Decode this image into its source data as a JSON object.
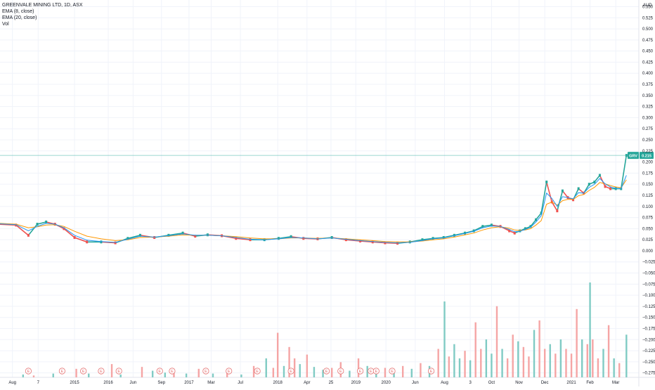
{
  "legend": {
    "title": "GREENVALE MINING LTD, 1D, ASX",
    "ema8": "EMA (8, close)",
    "ema20": "EMA (20, close)",
    "vol": "Vol"
  },
  "colors": {
    "up": "#26a69a",
    "down": "#ef5350",
    "ema8": "#2196f3",
    "ema20": "#ff9800",
    "vol_up": "#80cbc4",
    "vol_down": "#f5a5a5",
    "grid": "#f0f3fa",
    "earnings": "#e57373"
  },
  "chart_data": {
    "type": "line",
    "title": "GREENVALE MINING LTD, 1D, ASX",
    "currency": "AUD",
    "last_price": {
      "symbol": "GRV",
      "value": 0.215
    },
    "y_ticks": [
      0.55,
      0.525,
      0.5,
      0.475,
      0.45,
      0.425,
      0.4,
      0.375,
      0.35,
      0.325,
      0.3,
      0.275,
      0.25,
      0.225,
      0.2,
      0.175,
      0.15,
      0.125,
      0.1,
      0.075,
      0.05,
      0.025,
      0.0,
      -0.025,
      -0.05,
      -0.075,
      -0.1,
      -0.125,
      -0.15,
      -0.175,
      -0.2,
      -0.225,
      -0.25,
      -0.275
    ],
    "y_tick_labels": [
      "0.550",
      "0.525",
      "0.500",
      "0.475",
      "0.450",
      "0.425",
      "0.400",
      "0.375",
      "0.350",
      "0.325",
      "0.300",
      "0.275",
      "0.250",
      "0.225",
      "0.200",
      "0.175",
      "0.150",
      "0.125",
      "0.100",
      "0.075",
      "0.050",
      "0.025",
      "0.000",
      "−0.025",
      "−0.050",
      "−0.075",
      "−0.100",
      "−0.125",
      "−0.150",
      "−0.175",
      "−0.200",
      "−0.225",
      "−0.250",
      "−0.275"
    ],
    "ylim": [
      -0.285,
      0.565
    ],
    "x_tick_labels": [
      "Aug",
      "7",
      "2015",
      "2016",
      "Jun",
      "Sep",
      "2017",
      "Mar",
      "Jul",
      "2018",
      "Apr",
      "25",
      "2019",
      "2020",
      "Jun",
      "Aug",
      "3",
      "Oct",
      "Nov",
      "Dec",
      "2021",
      "Feb",
      "Mar"
    ],
    "x_tick_positions": [
      0,
      1.45,
      3.5,
      5.4,
      6.8,
      8.4,
      9.95,
      11.2,
      12.85,
      14.95,
      16.6,
      17.95,
      19.35,
      21.05,
      22.7,
      24.35,
      25.8,
      27.0,
      28.55,
      30.0,
      31.5,
      32.55,
      34.0
    ],
    "x_range": [
      -0.7,
      35.3
    ],
    "price": {
      "x": [
        -0.8,
        0.2,
        0.9,
        1.4,
        1.9,
        2.4,
        2.9,
        3.5,
        4.2,
        5.0,
        5.8,
        6.5,
        7.2,
        8.0,
        8.8,
        9.6,
        10.3,
        11.0,
        11.8,
        12.6,
        13.4,
        14.2,
        15.0,
        15.7,
        16.4,
        17.2,
        18.0,
        18.8,
        19.6,
        20.3,
        21.0,
        21.7,
        22.4,
        23.1,
        23.7,
        24.3,
        24.9,
        25.5,
        26.0,
        26.5,
        27.0,
        27.5,
        28.0,
        28.3,
        28.6,
        28.9,
        29.2,
        29.5,
        29.8,
        30.1,
        30.4,
        30.7,
        31.0,
        31.3,
        31.6,
        31.9,
        32.2,
        32.5,
        32.8,
        33.1,
        33.4,
        33.7,
        34.0,
        34.3,
        34.6
      ],
      "close": [
        0.06,
        0.058,
        0.035,
        0.06,
        0.065,
        0.06,
        0.05,
        0.03,
        0.02,
        0.02,
        0.018,
        0.028,
        0.035,
        0.03,
        0.035,
        0.04,
        0.033,
        0.036,
        0.034,
        0.028,
        0.025,
        0.025,
        0.028,
        0.032,
        0.028,
        0.027,
        0.03,
        0.025,
        0.022,
        0.02,
        0.018,
        0.017,
        0.02,
        0.025,
        0.028,
        0.03,
        0.035,
        0.04,
        0.045,
        0.055,
        0.058,
        0.055,
        0.045,
        0.04,
        0.045,
        0.05,
        0.055,
        0.07,
        0.085,
        0.155,
        0.11,
        0.09,
        0.135,
        0.12,
        0.115,
        0.14,
        0.13,
        0.15,
        0.155,
        0.17,
        0.145,
        0.14,
        0.14,
        0.14,
        0.215
      ],
      "ema8": [
        0.061,
        0.059,
        0.045,
        0.055,
        0.062,
        0.06,
        0.052,
        0.035,
        0.024,
        0.021,
        0.019,
        0.026,
        0.033,
        0.031,
        0.034,
        0.038,
        0.035,
        0.035,
        0.034,
        0.03,
        0.026,
        0.025,
        0.027,
        0.03,
        0.029,
        0.027,
        0.029,
        0.026,
        0.023,
        0.021,
        0.019,
        0.018,
        0.019,
        0.023,
        0.027,
        0.029,
        0.034,
        0.039,
        0.044,
        0.052,
        0.056,
        0.055,
        0.048,
        0.043,
        0.044,
        0.048,
        0.053,
        0.065,
        0.079,
        0.13,
        0.118,
        0.1,
        0.122,
        0.12,
        0.117,
        0.131,
        0.13,
        0.143,
        0.15,
        0.163,
        0.151,
        0.144,
        0.141,
        0.14,
        0.17
      ],
      "ema20": [
        0.062,
        0.06,
        0.052,
        0.054,
        0.058,
        0.059,
        0.055,
        0.044,
        0.033,
        0.027,
        0.023,
        0.025,
        0.03,
        0.031,
        0.033,
        0.036,
        0.035,
        0.035,
        0.034,
        0.032,
        0.029,
        0.027,
        0.027,
        0.029,
        0.029,
        0.028,
        0.029,
        0.027,
        0.025,
        0.023,
        0.021,
        0.02,
        0.02,
        0.022,
        0.025,
        0.027,
        0.031,
        0.036,
        0.04,
        0.047,
        0.052,
        0.054,
        0.051,
        0.047,
        0.046,
        0.047,
        0.05,
        0.058,
        0.068,
        0.105,
        0.11,
        0.103,
        0.113,
        0.116,
        0.116,
        0.124,
        0.127,
        0.136,
        0.143,
        0.154,
        0.151,
        0.147,
        0.144,
        0.142,
        0.16
      ]
    },
    "volume": {
      "note": "relative volume, 0-1 (1 = tallest bar)",
      "x": [
        0.6,
        1.2,
        2.3,
        3.6,
        4.3,
        5.6,
        6.1,
        7.3,
        7.9,
        8.6,
        9.1,
        9.8,
        10.5,
        11.3,
        12.1,
        12.9,
        13.6,
        14.3,
        14.7,
        14.95,
        15.3,
        15.6,
        15.9,
        16.2,
        16.6,
        17.0,
        17.5,
        18.0,
        18.5,
        19.0,
        19.5,
        20.0,
        20.5,
        21.0,
        21.5,
        22.0,
        22.5,
        23.0,
        23.5,
        24.0,
        24.35,
        24.6,
        24.9,
        25.2,
        25.5,
        25.8,
        26.1,
        26.4,
        26.7,
        27.0,
        27.3,
        27.6,
        27.9,
        28.2,
        28.5,
        28.8,
        29.1,
        29.4,
        29.7,
        30.0,
        30.3,
        30.6,
        30.9,
        31.2,
        31.5,
        31.8,
        32.1,
        32.4,
        32.55,
        32.7,
        33.0,
        33.3,
        33.6,
        33.9,
        34.2,
        34.6
      ],
      "values": [
        0.03,
        0.02,
        0.04,
        0.09,
        0.04,
        0.14,
        0.03,
        0.11,
        0.07,
        0.05,
        0.08,
        0.04,
        0.09,
        0.04,
        0.07,
        0.03,
        0.12,
        0.2,
        0.1,
        0.47,
        0.12,
        0.32,
        0.2,
        0.14,
        0.24,
        0.11,
        0.08,
        0.1,
        0.16,
        0.07,
        0.2,
        0.12,
        0.08,
        0.1,
        0.05,
        0.12,
        0.09,
        0.15,
        0.12,
        0.3,
        0.8,
        0.22,
        0.35,
        0.2,
        0.28,
        0.18,
        0.58,
        0.3,
        0.4,
        0.25,
        0.75,
        0.3,
        0.2,
        0.45,
        0.38,
        0.32,
        0.22,
        0.5,
        0.6,
        0.3,
        0.35,
        0.25,
        0.4,
        0.3,
        0.25,
        0.72,
        0.4,
        0.35,
        1.0,
        0.4,
        0.2,
        0.3,
        0.55,
        0.2,
        0.15,
        0.45
      ]
    },
    "volume_colors": [
      "up",
      "down",
      "up",
      "down",
      "up",
      "down",
      "up",
      "down",
      "up",
      "up",
      "down",
      "up",
      "down",
      "up",
      "down",
      "up",
      "down",
      "up",
      "down",
      "down",
      "up",
      "down",
      "down",
      "up",
      "down",
      "up",
      "up",
      "down",
      "down",
      "up",
      "down",
      "up",
      "up",
      "down",
      "up",
      "down",
      "up",
      "down",
      "up",
      "down",
      "up",
      "down",
      "up",
      "up",
      "down",
      "up",
      "down",
      "down",
      "up",
      "up",
      "down",
      "up",
      "down",
      "down",
      "up",
      "down",
      "down",
      "up",
      "down",
      "down",
      "up",
      "down",
      "up",
      "down",
      "down",
      "down",
      "up",
      "down",
      "up",
      "down",
      "down",
      "up",
      "down",
      "up",
      "down",
      "up"
    ],
    "earnings_markers": {
      "label": "E",
      "x": [
        0.9,
        2.8,
        4.0,
        5.0,
        6.0,
        8.3,
        9.0,
        10.9,
        12.2,
        13.8,
        15.7,
        17.7,
        18.5,
        19.6,
        20.2,
        20.5,
        21.4,
        23.6
      ]
    }
  }
}
